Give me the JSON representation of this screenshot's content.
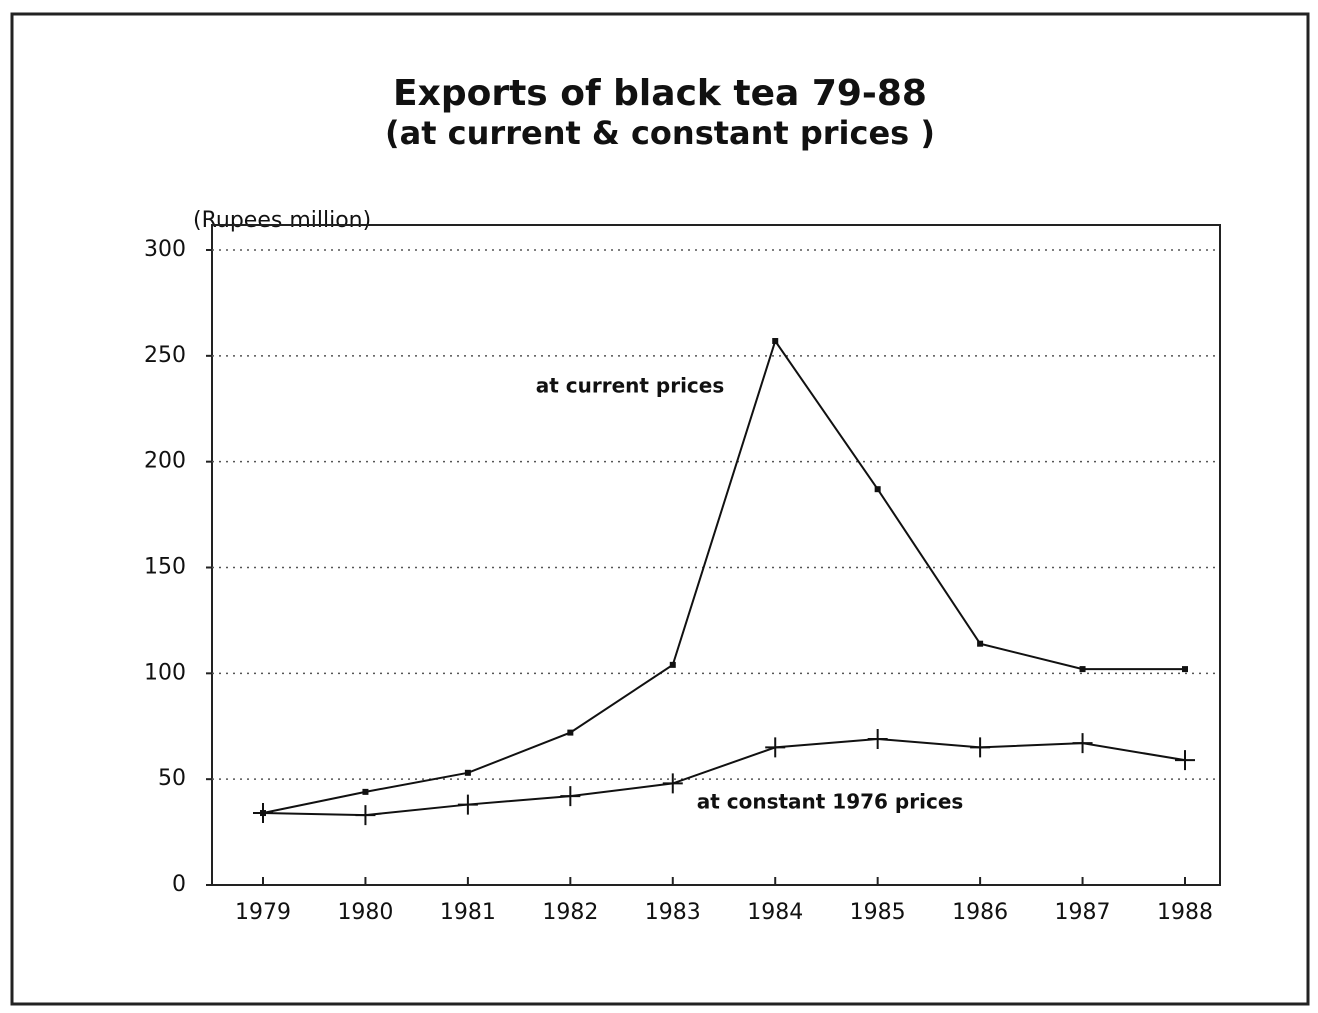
{
  "chart_data": {
    "type": "line",
    "title": "Exports of black tea  79-88",
    "subtitle": "(at current & constant prices )",
    "y_label": "(Rupees million)",
    "categories": [
      "1979",
      "1980",
      "1981",
      "1982",
      "1983",
      "1984",
      "1985",
      "1986",
      "1987",
      "1988"
    ],
    "series": [
      {
        "name": "at current prices",
        "color": "#111111",
        "marker": "square",
        "values": [
          34,
          44,
          53,
          72,
          104,
          257,
          187,
          114,
          102,
          102
        ]
      },
      {
        "name": "at constant 1976 prices",
        "color": "#111111",
        "marker": "plus",
        "values": [
          34,
          33,
          38,
          42,
          48,
          65,
          69,
          65,
          67,
          59
        ]
      }
    ],
    "ylim": [
      0,
      300
    ],
    "yticks": [
      0,
      50,
      100,
      150,
      200,
      250,
      300
    ],
    "grid": true
  }
}
